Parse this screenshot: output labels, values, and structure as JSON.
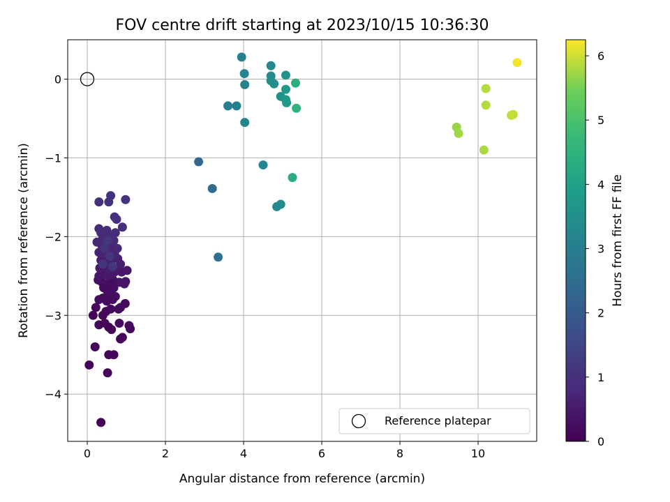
{
  "chart_data": {
    "type": "scatter",
    "title": "FOV centre drift starting at 2023/10/15 10:36:30",
    "xlabel": "Angular distance from reference (arcmin)",
    "ylabel": "Rotation from reference (arcmin)",
    "xlim": [
      -0.5,
      11.5
    ],
    "ylim": [
      -4.6,
      0.5
    ],
    "xticks": [
      0,
      2,
      4,
      6,
      8,
      10
    ],
    "yticks": [
      0,
      -1,
      -2,
      -3,
      -4
    ],
    "grid": true,
    "legend": {
      "position": "bottom-right",
      "entries": [
        "Reference platepar"
      ]
    },
    "reference": {
      "x": 0,
      "y": 0
    },
    "colorbar": {
      "label": "Hours from first FF file",
      "min": 0,
      "max": 6.25,
      "ticks": [
        0,
        1,
        2,
        3,
        4,
        5,
        6
      ],
      "colormap": "viridis"
    },
    "colors": {
      "grid": "#b0b0b0",
      "axes": "#000000"
    },
    "points": [
      {
        "x": 0.35,
        "y": -4.36,
        "c": 0.05
      },
      {
        "x": 0.05,
        "y": -3.63,
        "c": 0.05
      },
      {
        "x": 0.52,
        "y": -3.73,
        "c": 0.08
      },
      {
        "x": 0.2,
        "y": -3.4,
        "c": 0.08
      },
      {
        "x": 0.55,
        "y": -3.5,
        "c": 0.1
      },
      {
        "x": 0.68,
        "y": -3.5,
        "c": 0.1
      },
      {
        "x": 0.85,
        "y": -3.3,
        "c": 0.12
      },
      {
        "x": 0.9,
        "y": -3.28,
        "c": 0.15
      },
      {
        "x": 1.1,
        "y": -3.17,
        "c": 0.15
      },
      {
        "x": 1.07,
        "y": -3.13,
        "c": 0.18
      },
      {
        "x": 0.82,
        "y": -3.1,
        "c": 0.2
      },
      {
        "x": 0.3,
        "y": -3.12,
        "c": 0.1
      },
      {
        "x": 0.45,
        "y": -3.1,
        "c": 0.12
      },
      {
        "x": 0.55,
        "y": -3.15,
        "c": 0.1
      },
      {
        "x": 0.62,
        "y": -3.18,
        "c": 0.12
      },
      {
        "x": 0.4,
        "y": -3.0,
        "c": 0.15
      },
      {
        "x": 0.15,
        "y": -3.0,
        "c": 0.1
      },
      {
        "x": 0.22,
        "y": -2.9,
        "c": 0.12
      },
      {
        "x": 0.48,
        "y": -2.95,
        "c": 0.15
      },
      {
        "x": 0.6,
        "y": -2.92,
        "c": 0.18
      },
      {
        "x": 0.8,
        "y": -2.92,
        "c": 0.2
      },
      {
        "x": 0.85,
        "y": -2.9,
        "c": 0.2
      },
      {
        "x": 0.97,
        "y": -2.85,
        "c": 0.22
      },
      {
        "x": 0.3,
        "y": -2.8,
        "c": 0.2
      },
      {
        "x": 0.4,
        "y": -2.78,
        "c": 0.22
      },
      {
        "x": 0.55,
        "y": -2.77,
        "c": 0.25
      },
      {
        "x": 0.65,
        "y": -2.8,
        "c": 0.25
      },
      {
        "x": 0.72,
        "y": -2.76,
        "c": 0.28
      },
      {
        "x": 0.5,
        "y": -2.68,
        "c": 0.3
      },
      {
        "x": 0.6,
        "y": -2.7,
        "c": 0.3
      },
      {
        "x": 0.28,
        "y": -2.55,
        "c": 0.3
      },
      {
        "x": 0.38,
        "y": -2.58,
        "c": 0.32
      },
      {
        "x": 0.5,
        "y": -2.6,
        "c": 0.35
      },
      {
        "x": 0.66,
        "y": -2.55,
        "c": 0.35
      },
      {
        "x": 0.82,
        "y": -2.58,
        "c": 0.38
      },
      {
        "x": 0.95,
        "y": -2.6,
        "c": 0.4
      },
      {
        "x": 0.98,
        "y": -2.57,
        "c": 0.4
      },
      {
        "x": 1.02,
        "y": -2.43,
        "c": 0.42
      },
      {
        "x": 0.88,
        "y": -2.45,
        "c": 0.42
      },
      {
        "x": 0.3,
        "y": -2.5,
        "c": 0.45
      },
      {
        "x": 0.42,
        "y": -2.48,
        "c": 0.45
      },
      {
        "x": 0.55,
        "y": -2.5,
        "c": 0.48
      },
      {
        "x": 0.7,
        "y": -2.45,
        "c": 0.48
      },
      {
        "x": 0.32,
        "y": -2.4,
        "c": 0.5
      },
      {
        "x": 0.45,
        "y": -2.38,
        "c": 0.5
      },
      {
        "x": 0.58,
        "y": -2.42,
        "c": 0.55
      },
      {
        "x": 0.75,
        "y": -2.4,
        "c": 0.55
      },
      {
        "x": 0.85,
        "y": -2.35,
        "c": 0.58
      },
      {
        "x": 0.35,
        "y": -2.3,
        "c": 0.6
      },
      {
        "x": 0.48,
        "y": -2.32,
        "c": 0.6
      },
      {
        "x": 0.62,
        "y": -2.3,
        "c": 0.62
      },
      {
        "x": 0.78,
        "y": -2.28,
        "c": 0.65
      },
      {
        "x": 0.3,
        "y": -2.2,
        "c": 0.65
      },
      {
        "x": 0.42,
        "y": -2.22,
        "c": 0.68
      },
      {
        "x": 0.55,
        "y": -2.2,
        "c": 0.7
      },
      {
        "x": 0.7,
        "y": -2.22,
        "c": 0.7
      },
      {
        "x": 0.38,
        "y": -2.12,
        "c": 0.72
      },
      {
        "x": 0.5,
        "y": -2.1,
        "c": 0.75
      },
      {
        "x": 0.62,
        "y": -2.12,
        "c": 0.75
      },
      {
        "x": 0.77,
        "y": -2.15,
        "c": 0.78
      },
      {
        "x": 0.25,
        "y": -2.07,
        "c": 0.8
      },
      {
        "x": 0.4,
        "y": -2.02,
        "c": 0.8
      },
      {
        "x": 0.55,
        "y": -2.0,
        "c": 0.82
      },
      {
        "x": 0.68,
        "y": -2.05,
        "c": 0.85
      },
      {
        "x": 0.35,
        "y": -1.95,
        "c": 0.85
      },
      {
        "x": 0.5,
        "y": -1.92,
        "c": 0.88
      },
      {
        "x": 0.3,
        "y": -1.9,
        "c": 0.88
      },
      {
        "x": 0.72,
        "y": -1.95,
        "c": 0.9
      },
      {
        "x": 0.9,
        "y": -1.88,
        "c": 0.92
      },
      {
        "x": 0.7,
        "y": -1.75,
        "c": 0.95
      },
      {
        "x": 0.75,
        "y": -1.78,
        "c": 0.95
      },
      {
        "x": 0.3,
        "y": -1.56,
        "c": 0.98
      },
      {
        "x": 0.55,
        "y": -1.56,
        "c": 1.0
      },
      {
        "x": 0.6,
        "y": -1.48,
        "c": 1.0
      },
      {
        "x": 0.98,
        "y": -1.53,
        "c": 1.02
      },
      {
        "x": 0.45,
        "y": -2.15,
        "c": 1.05
      },
      {
        "x": 0.58,
        "y": -2.25,
        "c": 1.08
      },
      {
        "x": 0.4,
        "y": -2.35,
        "c": 1.1
      },
      {
        "x": 0.65,
        "y": -2.38,
        "c": 1.1
      },
      {
        "x": 0.52,
        "y": -2.05,
        "c": 1.15
      },
      {
        "x": 0.6,
        "y": -2.6,
        "c": 0.2
      },
      {
        "x": 0.5,
        "y": -2.82,
        "c": 0.18
      },
      {
        "x": 0.68,
        "y": -2.65,
        "c": 0.28
      },
      {
        "x": 0.42,
        "y": -2.65,
        "c": 0.25
      },
      {
        "x": 2.85,
        "y": -1.05,
        "c": 2.4
      },
      {
        "x": 3.2,
        "y": -1.39,
        "c": 2.5
      },
      {
        "x": 3.35,
        "y": -2.26,
        "c": 2.6
      },
      {
        "x": 3.6,
        "y": -0.34,
        "c": 3.0
      },
      {
        "x": 3.82,
        "y": -0.34,
        "c": 3.05
      },
      {
        "x": 3.95,
        "y": 0.28,
        "c": 3.1
      },
      {
        "x": 4.02,
        "y": 0.07,
        "c": 3.15
      },
      {
        "x": 4.03,
        "y": -0.07,
        "c": 3.15
      },
      {
        "x": 4.03,
        "y": -0.55,
        "c": 3.2
      },
      {
        "x": 4.5,
        "y": -1.09,
        "c": 3.2
      },
      {
        "x": 4.7,
        "y": 0.17,
        "c": 3.3
      },
      {
        "x": 4.7,
        "y": 0.04,
        "c": 3.35
      },
      {
        "x": 4.7,
        "y": -0.02,
        "c": 3.4
      },
      {
        "x": 4.78,
        "y": -0.06,
        "c": 3.45
      },
      {
        "x": 4.85,
        "y": -1.62,
        "c": 3.3
      },
      {
        "x": 4.95,
        "y": -1.59,
        "c": 3.35
      },
      {
        "x": 4.95,
        "y": -0.22,
        "c": 3.55
      },
      {
        "x": 5.08,
        "y": 0.05,
        "c": 3.6
      },
      {
        "x": 5.08,
        "y": -0.13,
        "c": 3.7
      },
      {
        "x": 5.08,
        "y": -0.26,
        "c": 3.75
      },
      {
        "x": 5.1,
        "y": -0.3,
        "c": 3.8
      },
      {
        "x": 5.25,
        "y": -1.25,
        "c": 4.3
      },
      {
        "x": 5.33,
        "y": -0.05,
        "c": 4.4
      },
      {
        "x": 5.35,
        "y": -0.37,
        "c": 4.5
      },
      {
        "x": 9.45,
        "y": -0.61,
        "c": 5.7
      },
      {
        "x": 9.5,
        "y": -0.69,
        "c": 5.75
      },
      {
        "x": 10.15,
        "y": -0.9,
        "c": 5.8
      },
      {
        "x": 10.2,
        "y": -0.12,
        "c": 5.85
      },
      {
        "x": 10.2,
        "y": -0.33,
        "c": 5.85
      },
      {
        "x": 10.85,
        "y": -0.46,
        "c": 5.9
      },
      {
        "x": 10.9,
        "y": -0.45,
        "c": 5.95
      },
      {
        "x": 11.0,
        "y": 0.21,
        "c": 6.2
      }
    ]
  }
}
